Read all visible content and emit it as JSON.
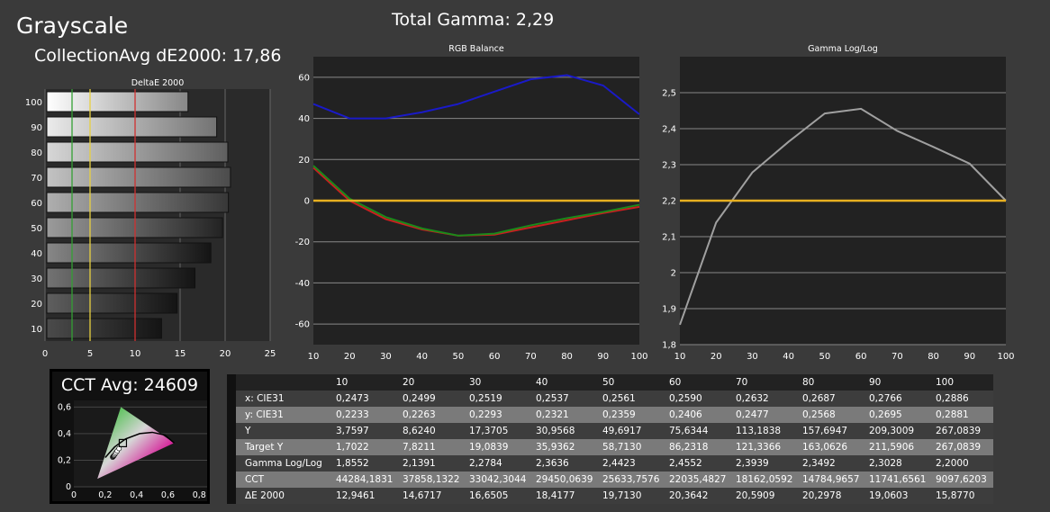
{
  "header": {
    "title": "Grayscale",
    "collection_avg": "CollectionAvg dE2000: 17,86",
    "total_gamma": "Total Gamma: 2,29"
  },
  "colors": {
    "red": "#c82020",
    "green": "#1a8a1a",
    "blue": "#1a1ac8",
    "yellow": "#e8b020",
    "gray": "#a0a0a0",
    "ref_green": "#33a033",
    "ref_yellow": "#e8d040",
    "ref_red": "#d03030"
  },
  "chart_data": [
    {
      "type": "bar",
      "title": "DeltaE 2000",
      "orientation": "horizontal",
      "categories": [
        "100",
        "90",
        "80",
        "70",
        "60",
        "50",
        "40",
        "30",
        "20",
        "10"
      ],
      "values": [
        15.877,
        19.0603,
        20.2978,
        20.5909,
        20.3642,
        19.713,
        18.4177,
        16.6505,
        14.6717,
        12.9461
      ],
      "xlim": [
        0,
        25
      ],
      "xticks": [
        "0",
        "5",
        "10",
        "15",
        "20",
        "25"
      ],
      "reference_lines": [
        3,
        5,
        10
      ],
      "grid": true
    },
    {
      "type": "line",
      "title": "RGB Balance",
      "x": [
        10,
        20,
        30,
        40,
        50,
        60,
        70,
        80,
        90,
        100
      ],
      "xticks": [
        "10",
        "20",
        "30",
        "40",
        "50",
        "60",
        "70",
        "80",
        "90",
        "100"
      ],
      "ylim": [
        -70,
        70
      ],
      "yticks": [
        "-60",
        "-40",
        "-20",
        "0",
        "20",
        "40",
        "60"
      ],
      "series": [
        {
          "color": "blue",
          "values": [
            47,
            40,
            40,
            43,
            47,
            53,
            59,
            61,
            56,
            42
          ]
        },
        {
          "color": "red",
          "values": [
            16,
            0,
            -9,
            -14,
            -17,
            -16.5,
            -13,
            -9.5,
            -6,
            -3
          ]
        },
        {
          "color": "green",
          "values": [
            17,
            1,
            -8,
            -13.5,
            -17,
            -16,
            -12,
            -8.5,
            -5.5,
            -2
          ]
        },
        {
          "color": "yellow",
          "values": [
            0,
            0,
            0,
            0,
            0,
            0,
            0,
            0,
            0,
            0
          ]
        }
      ],
      "grid": true
    },
    {
      "type": "line",
      "title": "Gamma Log/Log",
      "x": [
        10,
        20,
        30,
        40,
        50,
        60,
        70,
        80,
        90,
        100
      ],
      "xticks": [
        "10",
        "20",
        "30",
        "40",
        "50",
        "60",
        "70",
        "80",
        "90",
        "100"
      ],
      "ylim": [
        1.8,
        2.6
      ],
      "yticks": [
        "1,8",
        "1,9",
        "2",
        "2,1",
        "2,2",
        "2,3",
        "2,4",
        "2,5"
      ],
      "series": [
        {
          "color": "gray",
          "values": [
            1.8552,
            2.1391,
            2.2784,
            2.3636,
            2.4423,
            2.4552,
            2.3939,
            2.3492,
            2.3028,
            2.2
          ]
        },
        {
          "color": "yellow",
          "values": [
            2.2,
            2.2,
            2.2,
            2.2,
            2.2,
            2.2,
            2.2,
            2.2,
            2.2,
            2.2
          ]
        }
      ],
      "grid": true
    },
    {
      "type": "scatter",
      "title": "CCT Avg: 24609",
      "xticks": [
        "0",
        "0,2",
        "0,4",
        "0,6",
        "0,8"
      ],
      "yticks": [
        "0",
        "0,2",
        "0,4",
        "0,6"
      ],
      "xlim": [
        0,
        0.85
      ],
      "ylim": [
        0,
        0.65
      ],
      "x": [
        0.2473,
        0.2499,
        0.2519,
        0.2537,
        0.2561,
        0.259,
        0.2632,
        0.2687,
        0.2766,
        0.2886
      ],
      "y": [
        0.2233,
        0.2263,
        0.2293,
        0.2321,
        0.2359,
        0.2406,
        0.2477,
        0.2568,
        0.2695,
        0.2881
      ],
      "target": [
        0.3127,
        0.329
      ]
    }
  ],
  "table": {
    "columns": [
      "10",
      "20",
      "30",
      "40",
      "50",
      "60",
      "70",
      "80",
      "90",
      "100"
    ],
    "rows": [
      {
        "label": "x: CIE31",
        "values": [
          "0,2473",
          "0,2499",
          "0,2519",
          "0,2537",
          "0,2561",
          "0,2590",
          "0,2632",
          "0,2687",
          "0,2766",
          "0,2886"
        ]
      },
      {
        "label": "y: CIE31",
        "values": [
          "0,2233",
          "0,2263",
          "0,2293",
          "0,2321",
          "0,2359",
          "0,2406",
          "0,2477",
          "0,2568",
          "0,2695",
          "0,2881"
        ]
      },
      {
        "label": "Y",
        "values": [
          "3,7597",
          "8,6240",
          "17,3705",
          "30,9568",
          "49,6917",
          "75,6344",
          "113,1838",
          "157,6947",
          "209,3009",
          "267,0839"
        ]
      },
      {
        "label": "Target Y",
        "values": [
          "1,7022",
          "7,8211",
          "19,0839",
          "35,9362",
          "58,7130",
          "86,2318",
          "121,3366",
          "163,0626",
          "211,5906",
          "267,0839"
        ]
      },
      {
        "label": "Gamma Log/Log",
        "values": [
          "1,8552",
          "2,1391",
          "2,2784",
          "2,3636",
          "2,4423",
          "2,4552",
          "2,3939",
          "2,3492",
          "2,3028",
          "2,2000"
        ]
      },
      {
        "label": "CCT",
        "values": [
          "44284,1831",
          "37858,1322",
          "33042,3044",
          "29450,0639",
          "25633,7576",
          "22035,4827",
          "18162,0592",
          "14784,9657",
          "11741,6561",
          "9097,6203"
        ]
      },
      {
        "label": "ΔE 2000",
        "values": [
          "12,9461",
          "14,6717",
          "16,6505",
          "18,4177",
          "19,7130",
          "20,3642",
          "20,5909",
          "20,2978",
          "19,0603",
          "15,8770"
        ]
      }
    ]
  }
}
